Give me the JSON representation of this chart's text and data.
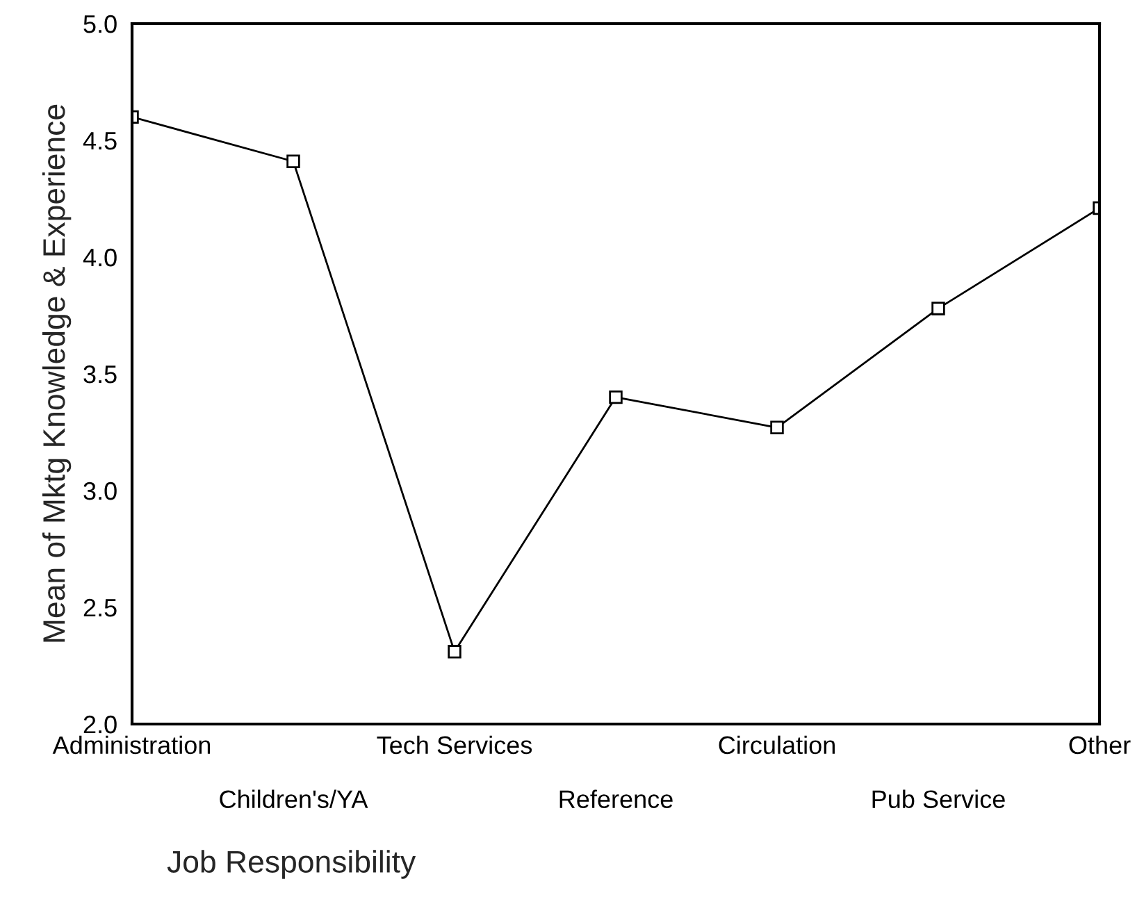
{
  "chart_data": {
    "type": "line",
    "xlabel": "Job Responsibility",
    "ylabel": "Mean of Mktg Knowledge & Experience",
    "categories": [
      "Administration",
      "Children's/YA",
      "Tech Services",
      "Reference",
      "Circulation",
      "Pub Service",
      "Other"
    ],
    "series": [
      {
        "color": "#000000",
        "values": [
          4.6,
          4.41,
          2.31,
          3.4,
          3.27,
          3.78,
          4.21
        ]
      }
    ],
    "ylim": [
      2.0,
      5.0
    ],
    "yticks": [
      {
        "value": 2.0,
        "label": "2.0"
      },
      {
        "value": 2.5,
        "label": "2.5"
      },
      {
        "value": 3.0,
        "label": "3.0"
      },
      {
        "value": 3.5,
        "label": "3.5"
      },
      {
        "value": 4.0,
        "label": "4.0"
      },
      {
        "value": 4.5,
        "label": "4.5"
      },
      {
        "value": 5.0,
        "label": "5.0"
      }
    ],
    "grid": false,
    "marker": "square",
    "line_style": "solid"
  }
}
